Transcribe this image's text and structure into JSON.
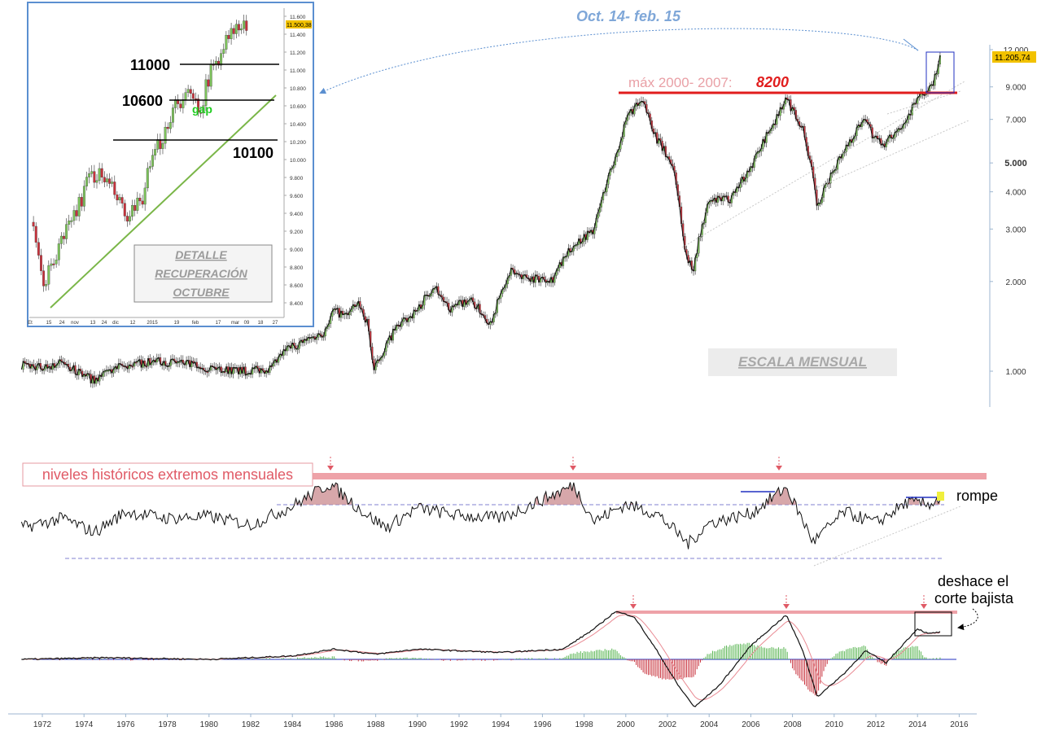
{
  "main": {
    "header_annotation": "Oct. 14- feb. 15",
    "max_label_prefix": "máx 2000- 2007: ",
    "max_label_value": "8200",
    "scale_label": "ESCALA MENSUAL",
    "last_price": "11.205,74",
    "colors": {
      "up": "#7dc35b",
      "down": "#c8323c",
      "resistance": "#e11d1d",
      "blue_note": "#6a9bd8"
    }
  },
  "inset": {
    "title_lines": [
      "DETALLE",
      "RECUPERACIÓN",
      "OCTUBRE"
    ],
    "last_price": "11.500,38",
    "levels": [
      {
        "label": "11000",
        "value": 11000
      },
      {
        "label": "10600",
        "value": 10600
      },
      {
        "label": "10100",
        "value": 10100
      }
    ],
    "gap_label": "gap",
    "y_ticks": [
      "11.600",
      "11.400",
      "11.200",
      "11.000",
      "10.800",
      "10.600",
      "10.400",
      "10.200",
      "10.000",
      "9.800",
      "9.600",
      "9.400",
      "9.200",
      "9.000",
      "8.800",
      "8.600",
      "8.400"
    ],
    "x_ticks": [
      "Et",
      "15",
      "24",
      "nov",
      "13",
      "24",
      "dic",
      "12",
      "2015",
      "19",
      "feb",
      "17",
      "mar",
      "09",
      "18",
      "27"
    ]
  },
  "oscillator": {
    "label": "niveles históricos extremos mensuales",
    "breakout_label": "rompe"
  },
  "macd": {
    "note_line1": "deshace el",
    "note_line2": "corte bajista"
  },
  "chart_data": [
    {
      "type": "line",
      "title": "",
      "subtitle": "",
      "xlabel": "",
      "ylabel": "",
      "log_scale": true,
      "ylim": [
        850,
        12500
      ],
      "y_ticks": [
        "12.000",
        "9.000",
        "7.000",
        "5.000",
        "4.000",
        "3.000",
        "2.000",
        "1.000"
      ],
      "x_ticks": [
        "1972",
        "1974",
        "1976",
        "1978",
        "1980",
        "1982",
        "1984",
        "1986",
        "1988",
        "1990",
        "1992",
        "1994",
        "1996",
        "1998",
        "2000",
        "2002",
        "2004",
        "2006",
        "2008",
        "2010",
        "2012",
        "2014",
        "2016"
      ],
      "series": [
        {
          "x": [
            1971.0,
            1972.0,
            1973.0,
            1973.5,
            1974.5,
            1975.5,
            1976.5,
            1977.5,
            1978.5,
            1979.5,
            1980.5,
            1981.5,
            1982.5,
            1983.0,
            1983.8,
            1984.5,
            1985.5,
            1986.0,
            1986.5,
            1987.2,
            1987.6,
            1987.9,
            1989.0,
            1990.0,
            1990.8,
            1991.5,
            1992.5,
            1993.5,
            1994.5,
            1995.5,
            1996.5,
            1997.5,
            1998.5,
            1999.5,
            2000.2,
            2000.8,
            2001.5,
            2002.3,
            2002.8,
            2003.2,
            2004.0,
            2005.0,
            2006.0,
            2007.0,
            2007.7,
            2008.5,
            2009.2,
            2010.0,
            2011.0,
            2011.5,
            2011.9,
            2012.5,
            2013.5,
            2014.0,
            2014.7,
            2015.1
          ],
          "values": [
            1050,
            1030,
            1070,
            1010,
            930,
            1020,
            1060,
            1080,
            1070,
            1040,
            1020,
            1000,
            1010,
            1020,
            1200,
            1250,
            1350,
            1600,
            1530,
            1680,
            1450,
            1000,
            1400,
            1600,
            1950,
            1600,
            1750,
            1450,
            2150,
            2050,
            2050,
            2650,
            3000,
            5200,
            7400,
            8000,
            6000,
            4800,
            2600,
            2150,
            3700,
            3800,
            4800,
            6600,
            8200,
            6500,
            3500,
            4800,
            6300,
            7200,
            6000,
            5800,
            7100,
            8200,
            9000,
            11205
          ]
        }
      ]
    },
    {
      "type": "line",
      "title": "",
      "xlabel": "",
      "ylabel": "",
      "x_range": [
        2014.79,
        2015.17
      ],
      "ylim": [
        8300,
        11700
      ],
      "y_ticks": [
        "11.600",
        "11.400",
        "11.200",
        "11.000",
        "10.800",
        "10.600",
        "10.400",
        "10.200",
        "10.000",
        "9.800",
        "9.600",
        "9.400",
        "9.200",
        "9.000",
        "8.800",
        "8.600",
        "8.400"
      ],
      "series": [
        {
          "x": [
            2014.79,
            2014.81,
            2014.83,
            2014.85,
            2014.87,
            2014.89,
            2014.91,
            2014.93,
            2014.95,
            2014.97,
            2014.99,
            2015.01,
            2015.03,
            2015.05,
            2015.07,
            2015.09,
            2015.11,
            2015.13,
            2015.15
          ],
          "values": [
            9300,
            8600,
            8900,
            9250,
            9500,
            9850,
            9800,
            9600,
            9300,
            9500,
            9950,
            10300,
            10650,
            10700,
            10600,
            11000,
            11300,
            11450,
            11500
          ]
        }
      ]
    },
    {
      "type": "line",
      "title": "",
      "xlabel": "",
      "ylabel": "",
      "series": [
        {
          "x": [
            1971.0,
            1973.0,
            1974.5,
            1976.0,
            1978.0,
            1980.0,
            1982.0,
            1984.0,
            1985.8,
            1987.5,
            1988.5,
            1990.0,
            1992.0,
            1994.0,
            1995.5,
            1997.5,
            1998.5,
            2000.0,
            2001.5,
            2003.0,
            2004.0,
            2006.0,
            2007.7,
            2009.0,
            2010.5,
            2012.0,
            2013.5,
            2014.5,
            2015.1
          ],
          "values": [
            45,
            55,
            40,
            62,
            55,
            57,
            48,
            68,
            92,
            60,
            45,
            66,
            58,
            55,
            70,
            90,
            52,
            70,
            60,
            28,
            50,
            60,
            88,
            30,
            62,
            50,
            72,
            70,
            76
          ]
        }
      ]
    },
    {
      "type": "line",
      "title": "",
      "xlabel": "",
      "ylabel": "",
      "series": [
        {
          "name": "",
          "x": [
            1971.0,
            1975.0,
            1980.0,
            1984.0,
            1986.0,
            1988.0,
            1990.0,
            1994.0,
            1997.0,
            1998.5,
            1999.5,
            2000.4,
            2001.5,
            2002.5,
            2003.3,
            2004.5,
            2006.0,
            2007.7,
            2008.5,
            2009.2,
            2010.5,
            2011.5,
            2012.5,
            2014.0,
            2014.5,
            2015.1
          ],
          "values": [
            0,
            0.1,
            0,
            0.2,
            0.6,
            0.3,
            0.6,
            0.4,
            0.6,
            1.8,
            2.8,
            2.5,
            0.5,
            -1.5,
            -2.8,
            -1.5,
            0.8,
            2.6,
            0.5,
            -2.2,
            -0.8,
            0.5,
            -0.2,
            1.8,
            1.5,
            1.6
          ]
        }
      ]
    }
  ]
}
